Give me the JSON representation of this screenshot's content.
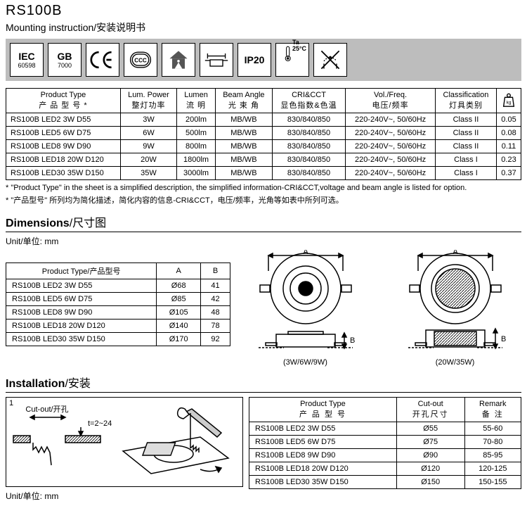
{
  "header": {
    "title": "RS100B",
    "subtitle_en": "Mounting instruction",
    "subtitle_cn": "/安装说明书"
  },
  "icons": [
    {
      "name": "iec-icon",
      "line1": "IEC",
      "line2": "60598"
    },
    {
      "name": "gb-icon",
      "line1": "GB",
      "line2": "7000"
    },
    {
      "name": "ce-icon",
      "glyph": "CE"
    },
    {
      "name": "ccc-icon",
      "glyph": "CCC"
    },
    {
      "name": "house-icon",
      "glyph": "house"
    },
    {
      "name": "dim-icon",
      "glyph": "dim"
    },
    {
      "name": "ip-icon",
      "line1": "IP20"
    },
    {
      "name": "ta-icon",
      "line1": "Ta",
      "line2": "25°C"
    },
    {
      "name": "cover-icon",
      "glyph": "cover"
    }
  ],
  "spec": {
    "headers": [
      {
        "en": "Product Type",
        "cn": "产 品 型 号 *"
      },
      {
        "en": "Lum. Power",
        "cn": "整灯功率"
      },
      {
        "en": "Lumen",
        "cn": "流 明"
      },
      {
        "en": "Beam Angle",
        "cn": "光 束 角"
      },
      {
        "en": "CRI&CCT",
        "cn": "显色指数&色温"
      },
      {
        "en": "Vol./Freq.",
        "cn": "电压/频率"
      },
      {
        "en": "Classification",
        "cn": "灯具类别"
      },
      {
        "en": "kg",
        "cn": ""
      }
    ],
    "rows": [
      [
        "RS100B LED2 3W D55",
        "3W",
        "200lm",
        "MB/WB",
        "830/840/850",
        "220-240V~, 50/60Hz",
        "Class II",
        "0.05"
      ],
      [
        "RS100B LED5 6W D75",
        "6W",
        "500lm",
        "MB/WB",
        "830/840/850",
        "220-240V~, 50/60Hz",
        "Class II",
        "0.08"
      ],
      [
        "RS100B LED8 9W D90",
        "9W",
        "800lm",
        "MB/WB",
        "830/840/850",
        "220-240V~, 50/60Hz",
        "Class II",
        "0.11"
      ],
      [
        "RS100B LED18 20W D120",
        "20W",
        "1800lm",
        "MB/WB",
        "830/840/850",
        "220-240V~, 50/60Hz",
        "Class I",
        "0.23"
      ],
      [
        "RS100B LED30 35W D150",
        "35W",
        "3000lm",
        "MB/WB",
        "830/840/850",
        "220-240V~, 50/60Hz",
        "Class I",
        "0.37"
      ]
    ],
    "footnote_en": "* \"Product Type\" in the sheet is a simplified description, the simplified information-CRI&CCT,voltage and beam angle is listed for option.",
    "footnote_cn": "* \"产品型号\" 所列均为简化描述，简化内容的信息-CRI&CCT，电压/频率，光角等如表中所列可选。"
  },
  "dimensions": {
    "title_en": "Dimensions",
    "title_cn": "/尺寸图",
    "unit": "Unit/单位: mm",
    "headers": [
      "Product Type/产品型号",
      "A",
      "B"
    ],
    "rows": [
      [
        "RS100B LED2 3W D55",
        "Ø68",
        "41"
      ],
      [
        "RS100B LED5 6W D75",
        "Ø85",
        "42"
      ],
      [
        "RS100B LED8 9W D90",
        "Ø105",
        "48"
      ],
      [
        "RS100B LED18 20W D120",
        "Ø140",
        "78"
      ],
      [
        "RS100B LED30 35W D150",
        "Ø170",
        "92"
      ]
    ],
    "diagram1_caption": "(3W/6W/9W)",
    "diagram2_caption": "(20W/35W)",
    "dim_label_a": "A",
    "dim_label_b": "B"
  },
  "installation": {
    "title_en": "Installation",
    "title_cn": "/安装",
    "step": "1",
    "cutout_label": "Cut-out/开孔",
    "thickness_label": "t=2~24",
    "unit": "Unit/单位: mm",
    "headers": [
      {
        "en": "Product Type",
        "cn": "产 品 型 号"
      },
      {
        "en": "Cut-out",
        "cn": "开孔尺寸"
      },
      {
        "en": "Remark",
        "cn": "备   注"
      }
    ],
    "rows": [
      [
        "RS100B LED2 3W D55",
        "Ø55",
        "55-60"
      ],
      [
        "RS100B LED5 6W D75",
        "Ø75",
        "70-80"
      ],
      [
        "RS100B LED8 9W D90",
        "Ø90",
        "85-95"
      ],
      [
        "RS100B LED18 20W D120",
        "Ø120",
        "120-125"
      ],
      [
        "RS100B LED30 35W D150",
        "Ø150",
        "150-155"
      ]
    ]
  }
}
